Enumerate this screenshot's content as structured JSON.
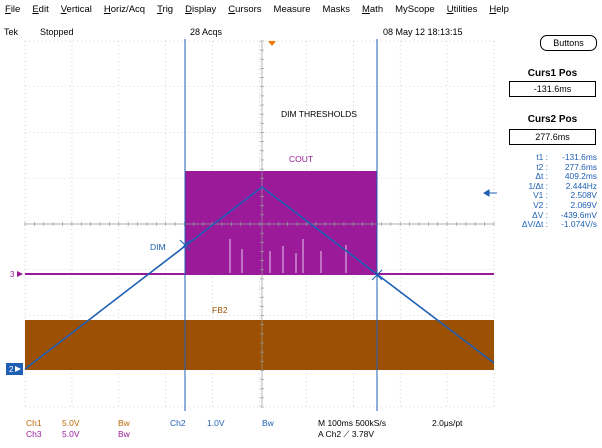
{
  "menu": [
    {
      "label": "File",
      "u": "F"
    },
    {
      "label": "Edit",
      "u": "E"
    },
    {
      "label": "Vertical",
      "u": "V"
    },
    {
      "label": "Horiz/Acq",
      "u": "H"
    },
    {
      "label": "Trig",
      "u": "T"
    },
    {
      "label": "Display",
      "u": "D"
    },
    {
      "label": "Cursors",
      "u": "C"
    },
    {
      "label": "Measure",
      "u": ""
    },
    {
      "label": "Masks",
      "u": ""
    },
    {
      "label": "Math",
      "u": "M"
    },
    {
      "label": "MyScope",
      "u": ""
    },
    {
      "label": "Utilities",
      "u": "U"
    },
    {
      "label": "Help",
      "u": "H"
    }
  ],
  "status": {
    "brand": "Tek",
    "state": "Stopped",
    "acqs": "28 Acqs",
    "datetime": "08 May 12 18:13:15"
  },
  "buttons_label": "Buttons",
  "curs1": {
    "title": "Curs1 Pos",
    "value": "-131.6ms"
  },
  "curs2": {
    "title": "Curs2 Pos",
    "value": "277.6ms"
  },
  "readout": [
    {
      "label": "t1 :",
      "value": "-131.6ms"
    },
    {
      "label": "t2 :",
      "value": "277.6ms"
    },
    {
      "label": "Δt :",
      "value": "409.2ms"
    },
    {
      "label": "1/Δt :",
      "value": "2.444Hz"
    },
    {
      "label": "V1 :",
      "value": "2.508V"
    },
    {
      "label": "V2 :",
      "value": "2.069V"
    },
    {
      "label": "ΔV :",
      "value": "-439.6mV"
    },
    {
      "label": "ΔV/Δt :",
      "value": "-1.074V/s"
    }
  ],
  "annotations": {
    "title": "DIM THRESHOLDS",
    "cout": "COUT",
    "dim": "DIM",
    "fb2": "FB2"
  },
  "markers": {
    "ch3": "3",
    "ch2": "2"
  },
  "bottom": {
    "ch1": "Ch1",
    "ch1_scale": "5.0V",
    "ch1_bw": "Bw",
    "ch3": "Ch3",
    "ch3_scale": "5.0V",
    "ch3_bw": "Bw",
    "ch2": "Ch2",
    "ch2_scale": "1.0V",
    "ch2_bw": "Bw",
    "timebase": "M 100ms 500kS/s",
    "res": "2.0μs/pt",
    "trigger": "A  Ch2  ⟋  3.78V"
  },
  "colors": {
    "cout": "#9a1a9a",
    "fb2": "#9b5003",
    "dim": "#1e5fb4",
    "cursor": "#1e5fb4",
    "grid": "#b4b4b4"
  }
}
